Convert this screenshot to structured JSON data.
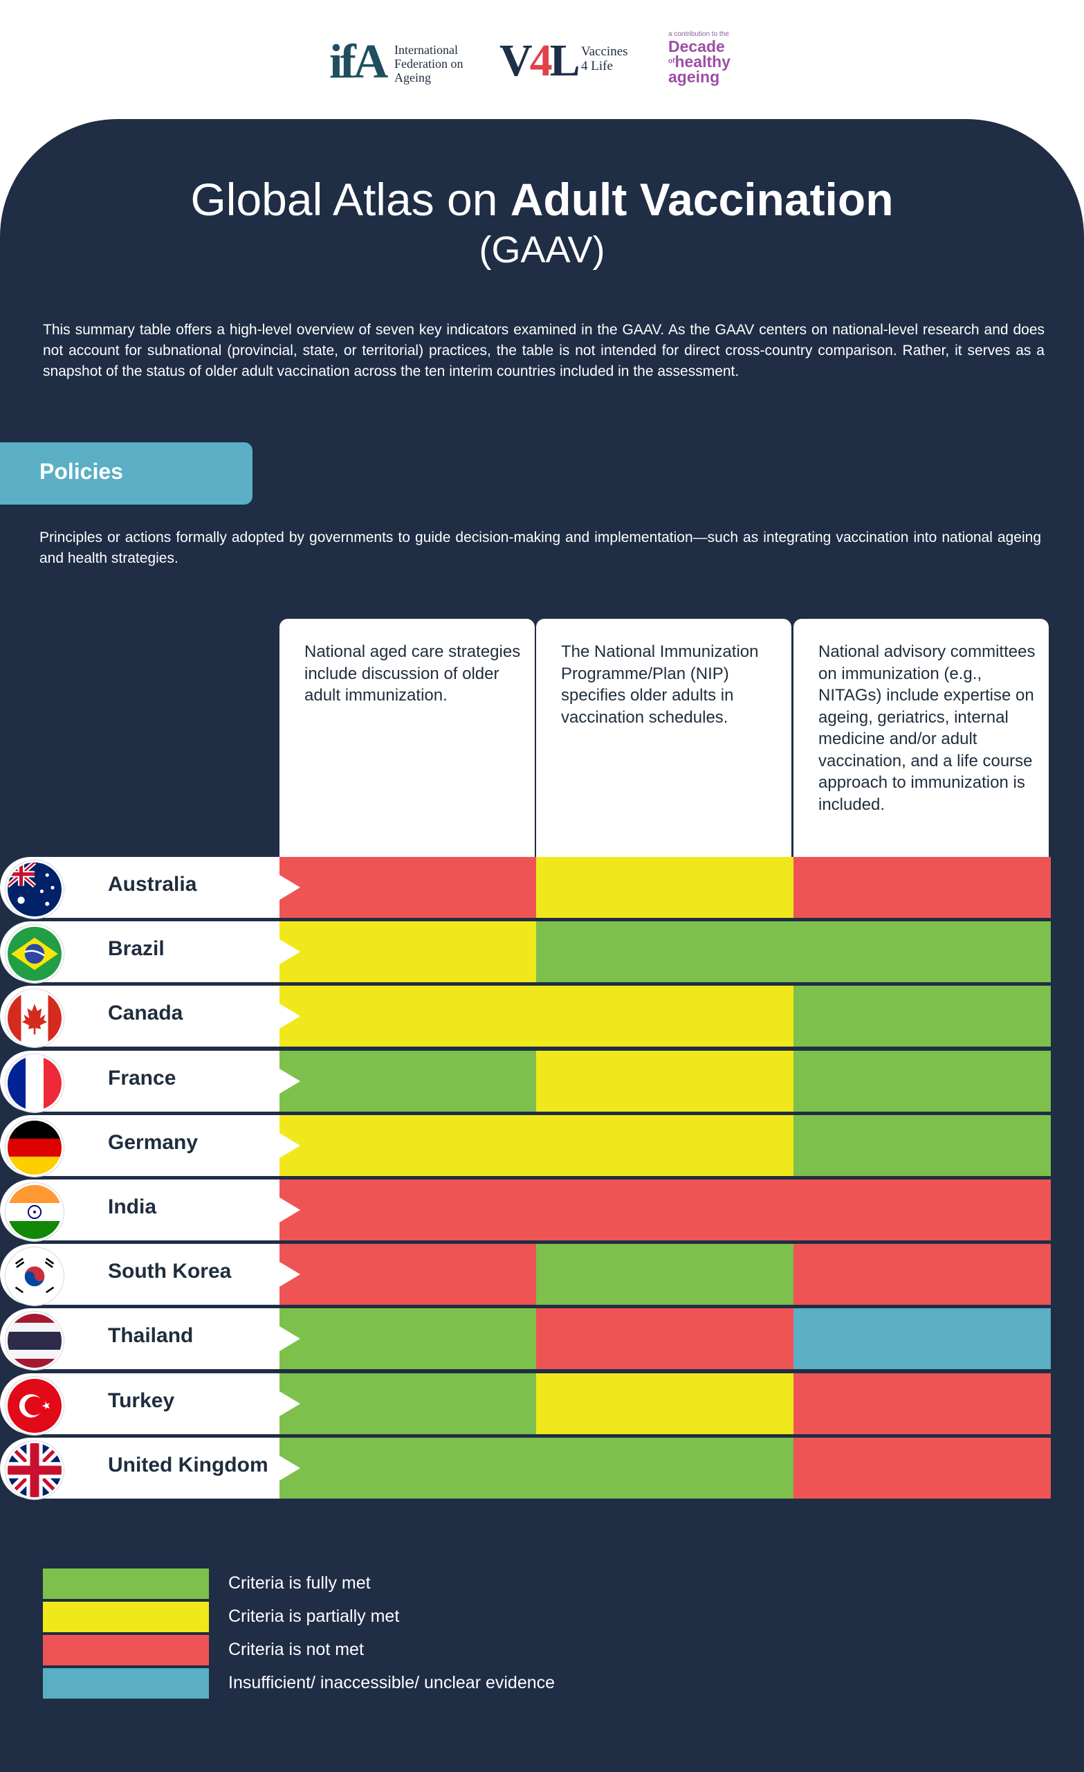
{
  "header": {
    "ifa_mark": "ifA",
    "ifa_lines": [
      "International",
      "Federation on",
      "Ageing"
    ],
    "v4l_mark_left": "V",
    "v4l_mark_mid": "4",
    "v4l_mark_right": "L",
    "v4l_lines": [
      "Vaccines",
      "4 Life"
    ],
    "decade_small": "a contribution to the",
    "decade_line1": "Decade",
    "decade_of": "of",
    "decade_line2": "healthy",
    "decade_line3": "ageing"
  },
  "title": {
    "prefix": "Global Atlas on ",
    "bold": "Adult Vaccination",
    "subtitle": "(GAAV)"
  },
  "intro": "This summary table offers a high-level overview of seven key indicators examined in the GAAV.  As the GAAV centers on national-level research and does not account for subnational (provincial, state, or territorial) practices, the table is not intended for direct cross-country comparison. Rather, it serves as a snapshot of the status of older adult vaccination across the ten interim countries included in the assessment.",
  "section": {
    "label": "Policies",
    "description": "Principles or actions formally adopted by governments to guide decision-making and implementation—such as integrating vaccination into national ageing and health strategies."
  },
  "indicators": [
    "National aged care strategies include discussion of older adult immunization.",
    "The National Immunization Programme/Plan (NIP) specifies older adults in vaccination schedules.",
    "National advisory committees on immunization (e.g., NITAGs) include expertise on ageing, geriatrics, internal medicine and/or adult vaccination, and a life course approach to immunization is included."
  ],
  "colors": {
    "green": "#7dc04b",
    "yellow": "#f1e81c",
    "red": "#ef5455",
    "blue": "#5aafc4"
  },
  "countries": [
    {
      "name": "Australia",
      "flag": "australia-flag",
      "status": [
        "red",
        "yellow",
        "red"
      ]
    },
    {
      "name": "Brazil",
      "flag": "brazil-flag",
      "status": [
        "yellow",
        "green",
        "green"
      ]
    },
    {
      "name": "Canada",
      "flag": "canada-flag",
      "status": [
        "yellow",
        "yellow",
        "green"
      ]
    },
    {
      "name": "France",
      "flag": "france-flag",
      "status": [
        "green",
        "yellow",
        "green"
      ]
    },
    {
      "name": "Germany",
      "flag": "germany-flag",
      "status": [
        "yellow",
        "yellow",
        "green"
      ]
    },
    {
      "name": "India",
      "flag": "india-flag",
      "status": [
        "red",
        "red",
        "red"
      ]
    },
    {
      "name": "South Korea",
      "flag": "south-korea-flag",
      "status": [
        "red",
        "green",
        "red"
      ]
    },
    {
      "name": "Thailand",
      "flag": "thailand-flag",
      "status": [
        "green",
        "red",
        "blue"
      ]
    },
    {
      "name": "Turkey",
      "flag": "turkey-flag",
      "status": [
        "green",
        "yellow",
        "red"
      ]
    },
    {
      "name": "United Kingdom",
      "flag": "united-kingdom-flag",
      "status": [
        "green",
        "green",
        "red"
      ]
    }
  ],
  "legend": [
    {
      "color": "green",
      "label": "Criteria is fully met"
    },
    {
      "color": "yellow",
      "label": "Criteria is partially met"
    },
    {
      "color": "red",
      "label": "Criteria is not met"
    },
    {
      "color": "blue",
      "label": "Insufficient/ inaccessible/ unclear evidence"
    }
  ]
}
